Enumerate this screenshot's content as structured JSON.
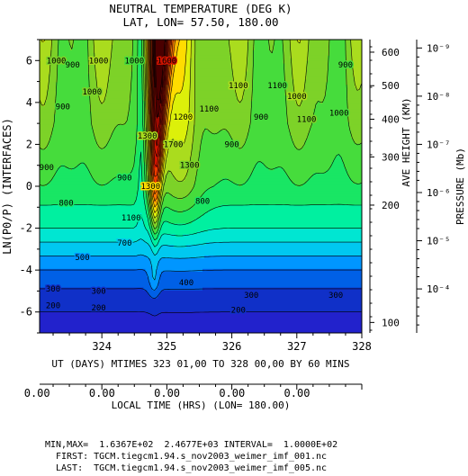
{
  "chart_data": {
    "type": "heatmap",
    "title": "NEUTRAL TEMPERATURE (DEG K)",
    "subtitle": "LAT, LON= 57.50,   180.00",
    "ylabel": "LN(P0/P) (INTERFACES)",
    "xlabel": "UT (DAYS) MTIMES 323 01,00 TO 328 00,00 BY   60 MINS",
    "x_ticks": [
      "324",
      "325",
      "326",
      "327",
      "328"
    ],
    "x_range": [
      323.042,
      328.0
    ],
    "y_ticks": [
      "6",
      "4",
      "2",
      "0",
      "-2",
      "-4",
      "-6"
    ],
    "y_range": [
      -7.0,
      7.0
    ],
    "right_axis_height": {
      "label": "AVE HEIGHT (KM)",
      "ticks": [
        "600",
        "500",
        "400",
        "300",
        "200",
        "100"
      ],
      "tick_positions_lnp": [
        6.4,
        4.8,
        3.2,
        1.4,
        -0.9,
        -6.5
      ]
    },
    "right_axis_pressure": {
      "label": "PRESSURE (Mb)",
      "ticks": [
        "10⁻⁹",
        "10⁻⁸",
        "10⁻⁷",
        "10⁻⁶",
        "10⁻⁵",
        "10⁻⁴"
      ],
      "tick_positions_lnp": [
        6.6,
        4.3,
        2.0,
        -0.3,
        -2.6,
        -4.9
      ]
    },
    "bottom_axis2": {
      "label": "LOCAL TIME (HRS) (LON= 180.00)",
      "ticks": [
        "0.00",
        "0.00",
        "0.00",
        "0.00",
        "0.00"
      ],
      "tick_x": [
        324,
        325,
        326,
        327,
        328
      ]
    },
    "stats": "MIN,MAX=  1.6367E+02  2.4677E+03 INTERVAL=  1.0000E+02",
    "first_file": "FIRST: TGCM.tiegcm1.94.s_nov2003_weimer_imf_001.nc",
    "last_file": "LAST:  TGCM.tiegcm1.94.s_nov2003_weimer_imf_005.nc",
    "min": 163.67,
    "max": 2467.7,
    "interval": 100,
    "color_levels": [
      {
        "from": 160,
        "to": 200,
        "color": "#2222cc"
      },
      {
        "from": 200,
        "to": 300,
        "color": "#1030c8"
      },
      {
        "from": 300,
        "to": 400,
        "color": "#0060e6"
      },
      {
        "from": 400,
        "to": 500,
        "color": "#0096ff"
      },
      {
        "from": 500,
        "to": 600,
        "color": "#00c8f0"
      },
      {
        "from": 600,
        "to": 700,
        "color": "#00e6d2"
      },
      {
        "from": 700,
        "to": 800,
        "color": "#00f0a0"
      },
      {
        "from": 800,
        "to": 900,
        "color": "#19e664"
      },
      {
        "from": 900,
        "to": 1000,
        "color": "#46dc3c"
      },
      {
        "from": 1000,
        "to": 1100,
        "color": "#7dd228"
      },
      {
        "from": 1100,
        "to": 1200,
        "color": "#aadc1e"
      },
      {
        "from": 1200,
        "to": 1300,
        "color": "#dcf00a"
      },
      {
        "from": 1300,
        "to": 1400,
        "color": "#ffdc00"
      },
      {
        "from": 1400,
        "to": 1500,
        "color": "#ffb400"
      },
      {
        "from": 1500,
        "to": 1700,
        "color": "#ff7800"
      },
      {
        "from": 1700,
        "to": 1900,
        "color": "#f03c00"
      },
      {
        "from": 1900,
        "to": 2100,
        "color": "#d21400"
      },
      {
        "from": 2100,
        "to": 2300,
        "color": "#a00a00"
      },
      {
        "from": 2300,
        "to": 2500,
        "color": "#4a0000"
      }
    ],
    "contour_labels": [
      {
        "text": "1000",
        "x": 323.3,
        "y": 6.0
      },
      {
        "text": "900",
        "x": 323.55,
        "y": 5.8
      },
      {
        "text": "1000",
        "x": 323.95,
        "y": 6.0
      },
      {
        "text": "1000",
        "x": 324.5,
        "y": 6.0
      },
      {
        "text": "1600",
        "x": 325.0,
        "y": 6.0
      },
      {
        "text": "900",
        "x": 327.75,
        "y": 5.8
      },
      {
        "text": "1000",
        "x": 323.85,
        "y": 4.5
      },
      {
        "text": "1100",
        "x": 326.1,
        "y": 4.8
      },
      {
        "text": "1100",
        "x": 326.7,
        "y": 4.8
      },
      {
        "text": "1000",
        "x": 327.0,
        "y": 4.3
      },
      {
        "text": "1100",
        "x": 327.15,
        "y": 3.2
      },
      {
        "text": "900",
        "x": 323.4,
        "y": 3.8
      },
      {
        "text": "1200",
        "x": 325.25,
        "y": 3.3
      },
      {
        "text": "1100",
        "x": 325.65,
        "y": 3.7
      },
      {
        "text": "900",
        "x": 326.45,
        "y": 3.3
      },
      {
        "text": "1000",
        "x": 327.65,
        "y": 3.5
      },
      {
        "text": "1300",
        "x": 324.7,
        "y": 2.4
      },
      {
        "text": "1700",
        "x": 325.1,
        "y": 2.0
      },
      {
        "text": "900",
        "x": 326.0,
        "y": 2.0
      },
      {
        "text": "900",
        "x": 323.15,
        "y": 0.9
      },
      {
        "text": "1300",
        "x": 325.35,
        "y": 1.0
      },
      {
        "text": "900",
        "x": 324.35,
        "y": 0.4
      },
      {
        "text": "800",
        "x": 323.45,
        "y": -0.8
      },
      {
        "text": "1300",
        "x": 324.75,
        "y": 0.0
      },
      {
        "text": "1100",
        "x": 324.45,
        "y": -1.5
      },
      {
        "text": "800",
        "x": 325.55,
        "y": -0.7
      },
      {
        "text": "700",
        "x": 324.35,
        "y": -2.7
      },
      {
        "text": "500",
        "x": 323.7,
        "y": -3.4
      },
      {
        "text": "400",
        "x": 325.3,
        "y": -4.6
      },
      {
        "text": "300",
        "x": 323.25,
        "y": -4.9
      },
      {
        "text": "300",
        "x": 323.95,
        "y": -5.0
      },
      {
        "text": "300",
        "x": 326.3,
        "y": -5.2
      },
      {
        "text": "300",
        "x": 327.6,
        "y": -5.2
      },
      {
        "text": "200",
        "x": 323.25,
        "y": -5.7
      },
      {
        "text": "200",
        "x": 323.95,
        "y": -5.8
      },
      {
        "text": "200",
        "x": 326.1,
        "y": -5.9
      }
    ]
  }
}
